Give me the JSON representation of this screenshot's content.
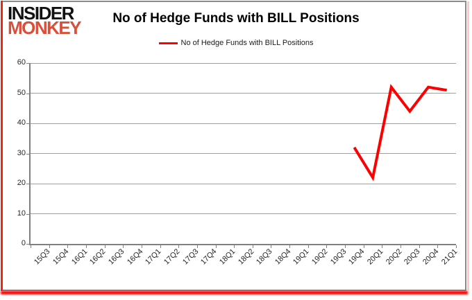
{
  "logo": {
    "line1": "INSIDER",
    "line2": "MONKEY",
    "color_primary": "#121212",
    "color_accent": "#d94f3a"
  },
  "title": "No of Hedge Funds with BILL Positions",
  "legend": {
    "label": "No of Hedge Funds with BILL Positions",
    "line_color": "#ff0000"
  },
  "frame": {
    "border_color": "#8c8c8c",
    "left_bar_color": "#ef2413",
    "bottom_bar_color": "#ff0000",
    "right_bar_color": "#ffc8c4"
  },
  "chart_data": {
    "type": "line",
    "title": "No of Hedge Funds with BILL Positions",
    "categories": [
      "15Q3",
      "15Q4",
      "16Q1",
      "16Q2",
      "16Q3",
      "16Q4",
      "17Q1",
      "17Q2",
      "17Q3",
      "17Q4",
      "18Q1",
      "18Q2",
      "18Q3",
      "18Q4",
      "19Q1",
      "19Q2",
      "19Q3",
      "19Q4",
      "20Q1",
      "20Q2",
      "20Q3",
      "20Q4",
      "21Q1"
    ],
    "series": [
      {
        "name": "No of Hedge Funds with BILL Positions",
        "color": "#ff0000",
        "values": [
          null,
          null,
          null,
          null,
          null,
          null,
          null,
          null,
          null,
          null,
          null,
          null,
          null,
          null,
          null,
          null,
          null,
          32,
          22,
          52,
          44,
          52,
          51
        ]
      }
    ],
    "xlabel": "",
    "ylabel": "",
    "ylim": [
      0,
      60
    ],
    "ytick_step": 10,
    "grid": true,
    "legend_position": "top",
    "axis_color": "#808080",
    "grid_color": "#9e9e9e"
  }
}
